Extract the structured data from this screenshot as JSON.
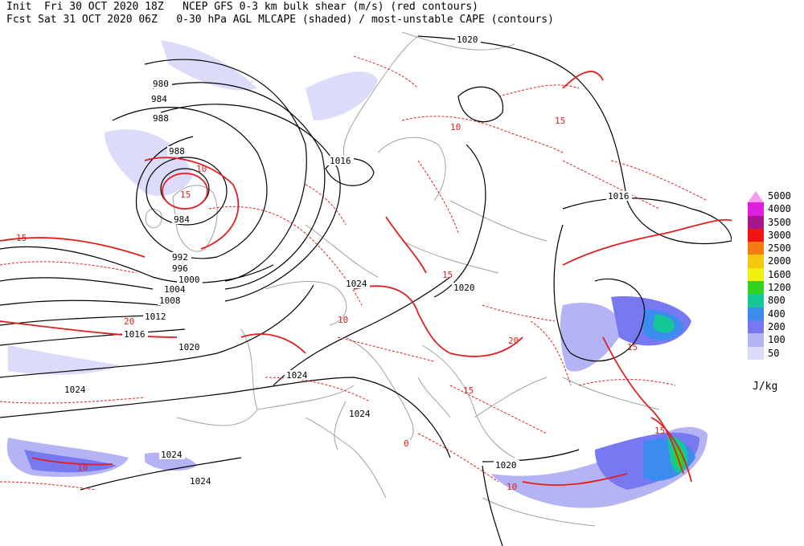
{
  "header": {
    "line1": "Init  Fri 30 OCT 2020 18Z   NCEP GFS 0-3 km bulk shear (m/s) (red contours)",
    "line2": "Fcst Sat 31 OCT 2020 06Z   0-30 hPa AGL MLCAPE (shaded) / most-unstable CAPE (contours)"
  },
  "legend": {
    "units": "J/kg",
    "items": [
      {
        "label": "5000",
        "color": "#f59cf0"
      },
      {
        "label": "4000",
        "color": "#e01ee0"
      },
      {
        "label": "3500",
        "color": "#a8148c"
      },
      {
        "label": "3000",
        "color": "#f01414"
      },
      {
        "label": "2500",
        "color": "#f57a0f"
      },
      {
        "label": "2000",
        "color": "#f5c80f"
      },
      {
        "label": "1600",
        "color": "#f0f00f"
      },
      {
        "label": "1200",
        "color": "#32d21e"
      },
      {
        "label": "800",
        "color": "#14c896"
      },
      {
        "label": "400",
        "color": "#3c8cf0"
      },
      {
        "label": "200",
        "color": "#7878f0"
      },
      {
        "label": "100",
        "color": "#b4b4f5"
      },
      {
        "label": "50",
        "color": "#dcdcfa"
      }
    ]
  },
  "isobar_labels": [
    "980",
    "984",
    "988",
    "988",
    "984",
    "992",
    "996",
    "1000",
    "1004",
    "1008",
    "1012",
    "1016",
    "1020",
    "1024",
    "1024",
    "1024",
    "1024",
    "1024",
    "1024",
    "1020",
    "1020",
    "1016",
    "1016",
    "1020"
  ],
  "shear_labels": [
    "10",
    "15",
    "20",
    "10",
    "15",
    "10",
    "15",
    "20",
    "15",
    "10",
    "15",
    "15",
    "15",
    "10",
    "0"
  ],
  "colors": {
    "coast": "#a0a0a0",
    "isobar": "#000000",
    "shear": "#e02020"
  }
}
